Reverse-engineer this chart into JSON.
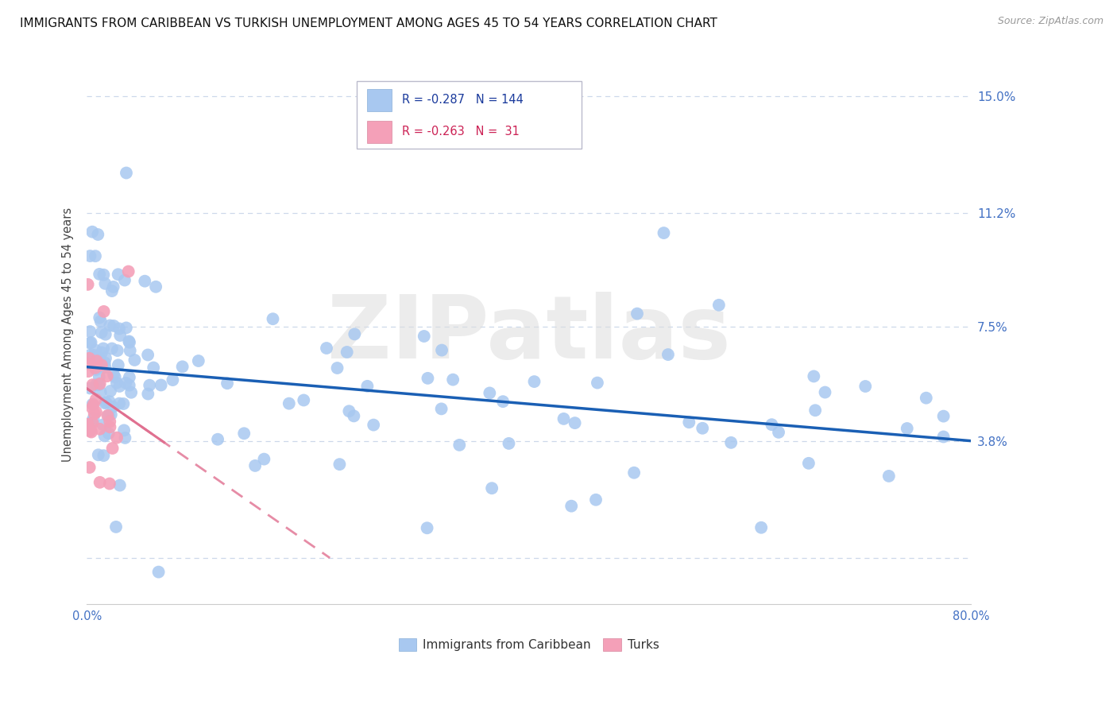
{
  "title": "IMMIGRANTS FROM CARIBBEAN VS TURKISH UNEMPLOYMENT AMONG AGES 45 TO 54 YEARS CORRELATION CHART",
  "source": "Source: ZipAtlas.com",
  "ylabel": "Unemployment Among Ages 45 to 54 years",
  "xlim": [
    0.0,
    80.0
  ],
  "ylim": [
    -1.5,
    16.0
  ],
  "yticks": [
    0.0,
    3.8,
    7.5,
    11.2,
    15.0
  ],
  "ytick_labels": [
    "",
    "3.8%",
    "7.5%",
    "11.2%",
    "15.0%"
  ],
  "xticks": [
    0.0,
    10.0,
    20.0,
    30.0,
    40.0,
    50.0,
    60.0,
    70.0,
    80.0
  ],
  "xtick_labels": [
    "0.0%",
    "",
    "",
    "",
    "",
    "",
    "",
    "",
    "80.0%"
  ],
  "watermark": "ZIPatlas",
  "legend_caribb_r": "R = -0.287",
  "legend_caribb_n": "N = 144",
  "legend_turk_r": "R = -0.263",
  "legend_turk_n": "N =  31",
  "caribb_color": "#a8c8f0",
  "turk_color": "#f4a0b8",
  "caribb_line_color": "#1a5fb4",
  "turk_line_color": "#e07090",
  "axis_color": "#4472c4",
  "grid_color": "#c8d4e8",
  "background_color": "#ffffff",
  "title_fontsize": 11,
  "source_fontsize": 9,
  "caribb_trendline": {
    "x_start": 0.0,
    "x_end": 80.0,
    "y_start": 6.2,
    "y_end": 3.8
  },
  "turk_trendline": {
    "x_start": 0.0,
    "x_end": 22.0,
    "y_start": 5.5,
    "y_end": 0.0
  }
}
